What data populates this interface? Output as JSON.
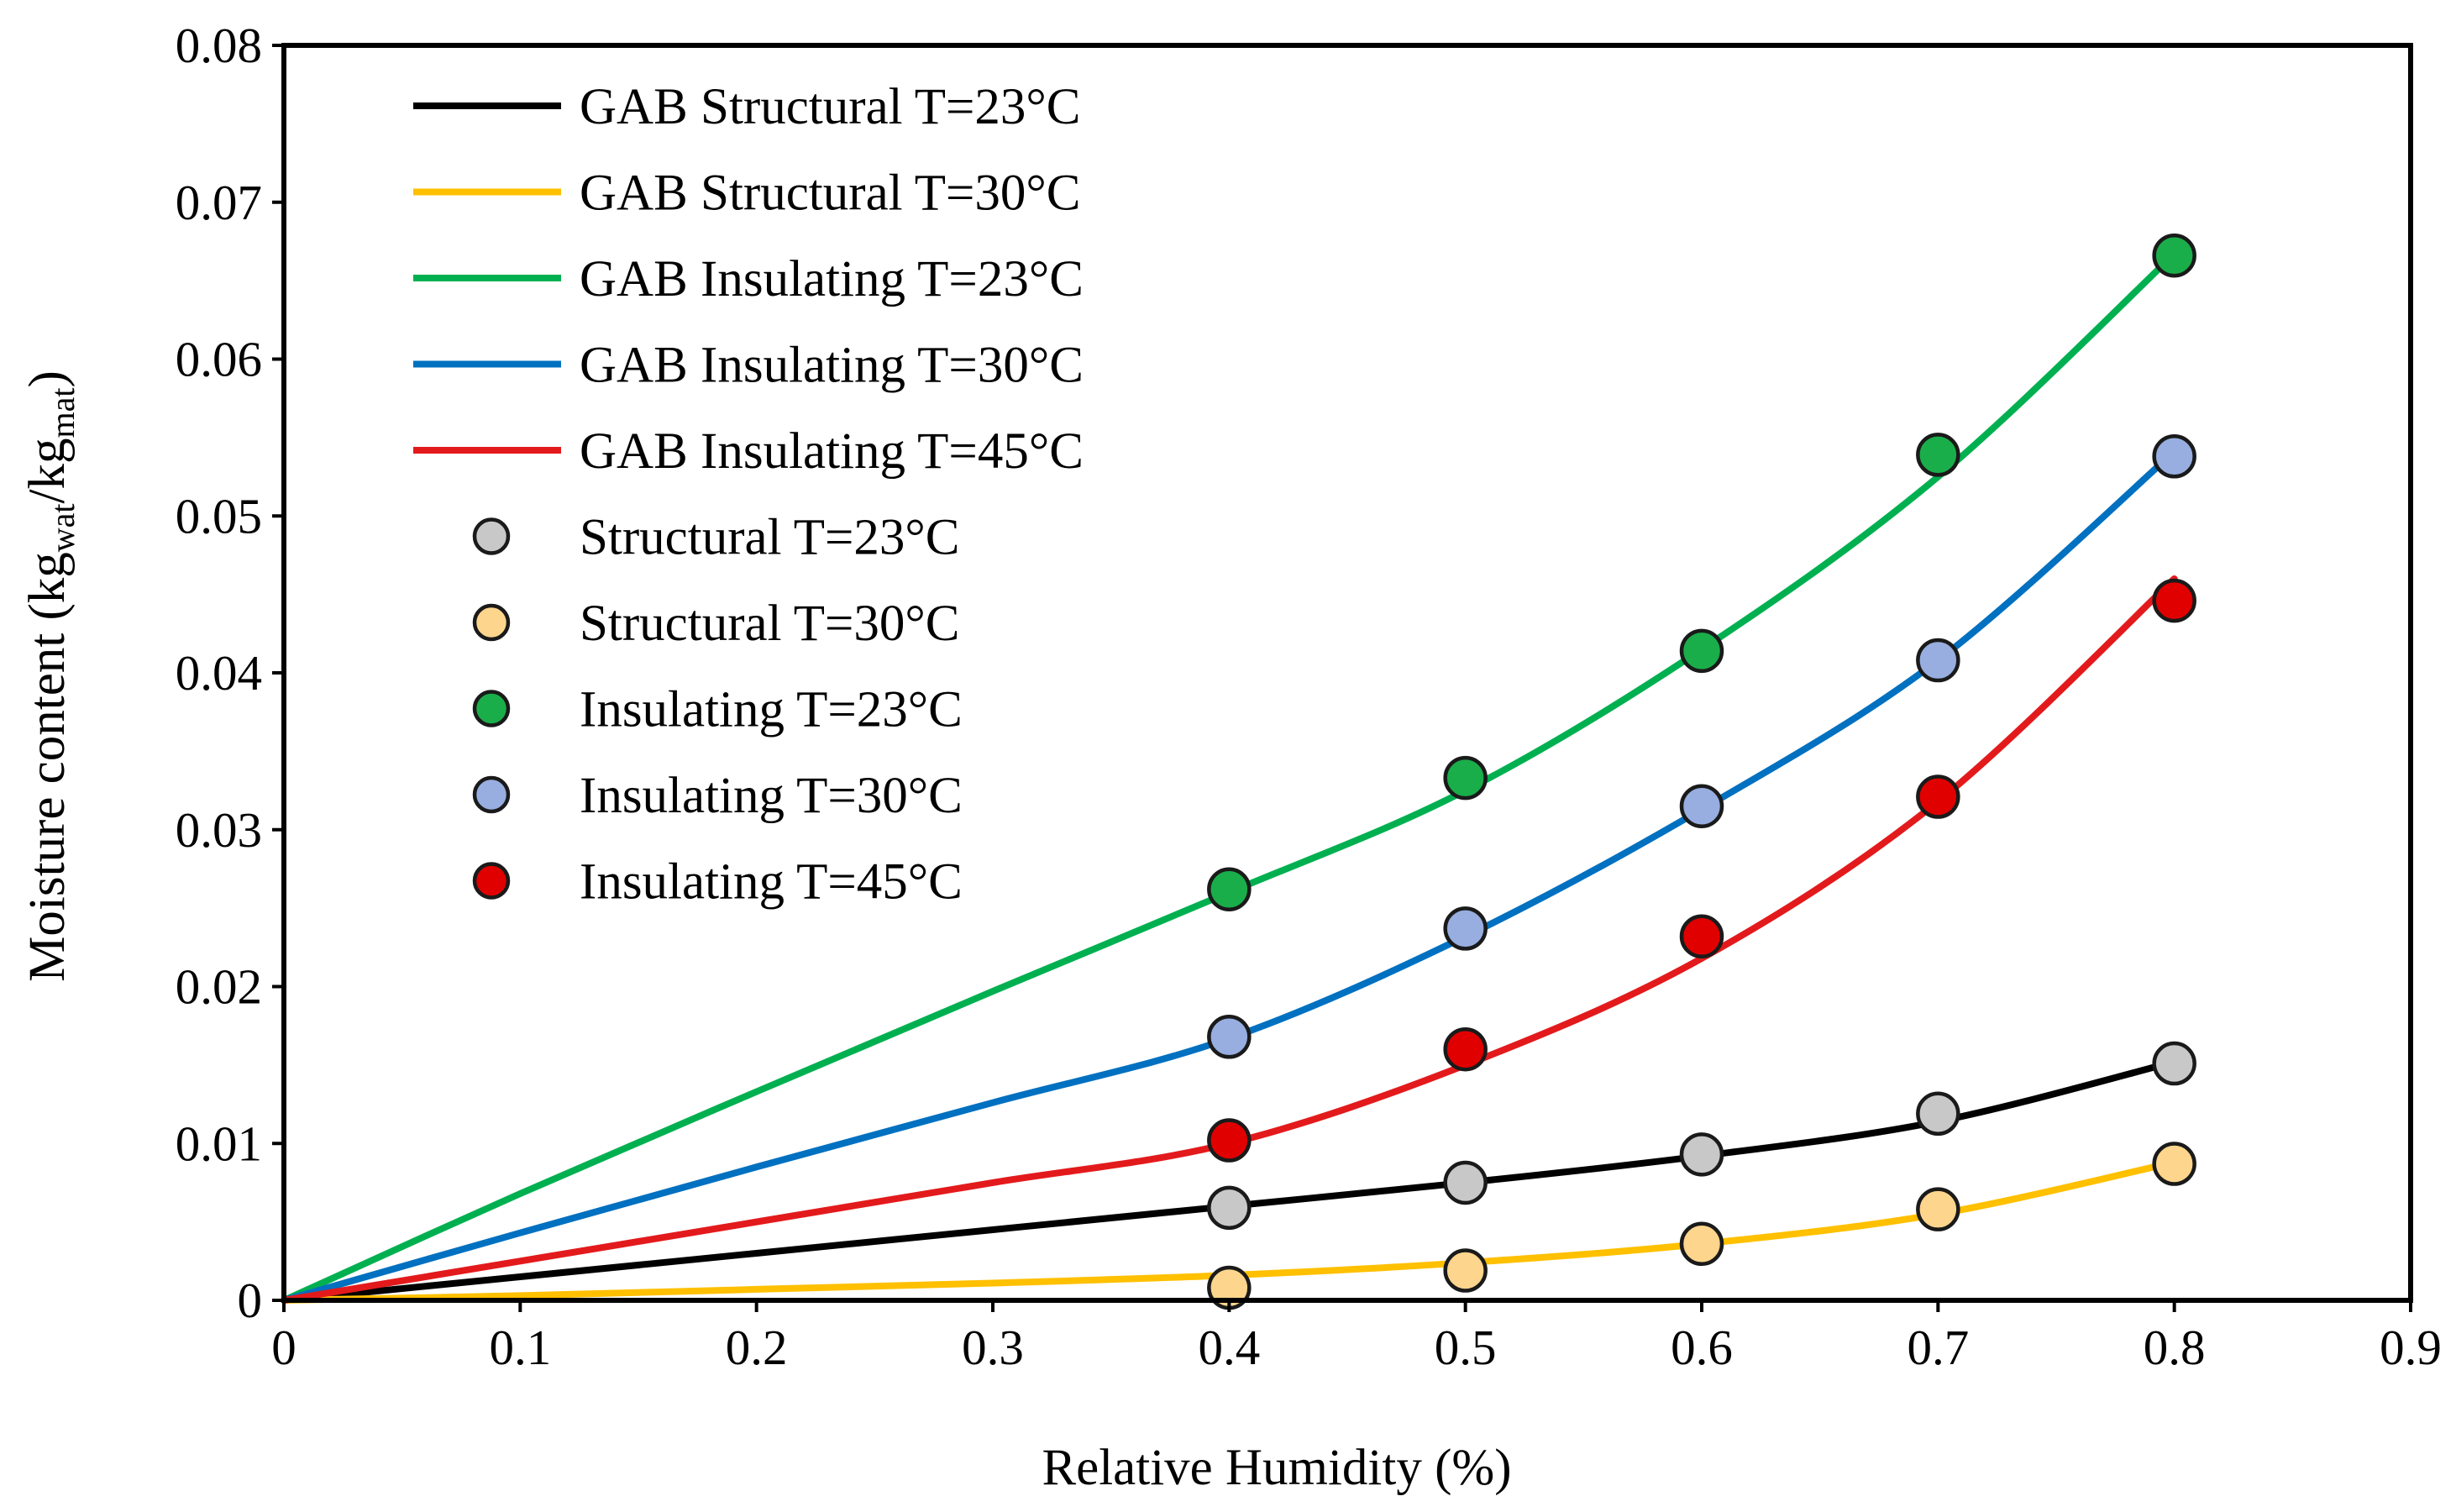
{
  "chart_data": {
    "type": "line",
    "title": "",
    "xlabel": "Relative Humidity (%)",
    "ylabel": {
      "prefix": "Moisture content (kg",
      "sub1": "wat",
      "mid": "/kg",
      "sub2": "mat",
      "suffix": ")"
    },
    "xlim": [
      0,
      0.9
    ],
    "ylim": [
      0,
      0.08
    ],
    "x_ticks": [
      0,
      0.1,
      0.2,
      0.3,
      0.4,
      0.5,
      0.6,
      0.7,
      0.8,
      0.9
    ],
    "y_ticks": [
      0,
      0.01,
      0.02,
      0.03,
      0.04,
      0.05,
      0.06,
      0.07,
      0.08
    ],
    "x_tick_labels": [
      "0",
      "0.1",
      "0.2",
      "0.3",
      "0.4",
      "0.5",
      "0.6",
      "0.7",
      "0.8",
      "0.9"
    ],
    "y_tick_labels": [
      "0",
      "0.01",
      "0.02",
      "0.03",
      "0.04",
      "0.05",
      "0.06",
      "0.07",
      "0.08"
    ],
    "grid": false,
    "legend_position": "top-left",
    "series": [
      {
        "name": "GAB Structural T=23°C",
        "kind": "line",
        "color": "#000000",
        "x": [
          0,
          0.1,
          0.2,
          0.3,
          0.4,
          0.5,
          0.6,
          0.7,
          0.8
        ],
        "y": [
          0,
          0.0015,
          0.003,
          0.0045,
          0.006,
          0.0075,
          0.0092,
          0.0114,
          0.0152
        ]
      },
      {
        "name": "GAB Structural T=30°C",
        "kind": "line",
        "color": "#FFC000",
        "x": [
          0,
          0.1,
          0.2,
          0.3,
          0.4,
          0.5,
          0.6,
          0.7,
          0.8
        ],
        "y": [
          0,
          0.0003,
          0.0007,
          0.0011,
          0.0016,
          0.0024,
          0.0036,
          0.0055,
          0.0088
        ]
      },
      {
        "name": "GAB Insulating T=23°C",
        "kind": "line",
        "color": "#00B050",
        "x": [
          0,
          0.1,
          0.2,
          0.3,
          0.4,
          0.5,
          0.6,
          0.7,
          0.8
        ],
        "y": [
          0,
          0.0068,
          0.0133,
          0.0197,
          0.026,
          0.0325,
          0.0415,
          0.0525,
          0.0667
        ]
      },
      {
        "name": "GAB Insulating T=30°C",
        "kind": "line",
        "color": "#0070C0",
        "x": [
          0,
          0.1,
          0.2,
          0.3,
          0.4,
          0.5,
          0.6,
          0.7,
          0.8
        ],
        "y": [
          0,
          0.0043,
          0.0085,
          0.0126,
          0.0167,
          0.0232,
          0.0313,
          0.0408,
          0.0541
        ]
      },
      {
        "name": "GAB Insulating T=45°C",
        "kind": "line",
        "color": "#E31A1C",
        "x": [
          0,
          0.1,
          0.2,
          0.3,
          0.4,
          0.5,
          0.6,
          0.7,
          0.8
        ],
        "y": [
          0,
          0.0025,
          0.005,
          0.0075,
          0.01,
          0.015,
          0.0218,
          0.0318,
          0.046
        ]
      },
      {
        "name": "Structural T=23°C",
        "kind": "scatter",
        "color": "#C8C8C8",
        "x": [
          0.4,
          0.5,
          0.6,
          0.7,
          0.8
        ],
        "y": [
          0.0059,
          0.0075,
          0.0093,
          0.0119,
          0.0151
        ]
      },
      {
        "name": "Structural T=30°C",
        "kind": "scatter",
        "color": "#FDD58C",
        "x": [
          0.4,
          0.5,
          0.6,
          0.7,
          0.8
        ],
        "y": [
          0.0008,
          0.0019,
          0.0036,
          0.0058,
          0.0087
        ]
      },
      {
        "name": "Insulating T=23°C",
        "kind": "scatter",
        "color": "#1AAE4A",
        "x": [
          0.4,
          0.5,
          0.6,
          0.7,
          0.8
        ],
        "y": [
          0.0262,
          0.0333,
          0.0414,
          0.0539,
          0.0666
        ]
      },
      {
        "name": "Insulating T=30°C",
        "kind": "scatter",
        "color": "#98AEE0",
        "x": [
          0.4,
          0.5,
          0.6,
          0.7,
          0.8
        ],
        "y": [
          0.0168,
          0.0237,
          0.0315,
          0.0408,
          0.0538
        ]
      },
      {
        "name": "Insulating T=45°C",
        "kind": "scatter",
        "color": "#E00000",
        "x": [
          0.4,
          0.5,
          0.6,
          0.7,
          0.8
        ],
        "y": [
          0.0102,
          0.016,
          0.0232,
          0.0321,
          0.0446
        ]
      }
    ]
  }
}
